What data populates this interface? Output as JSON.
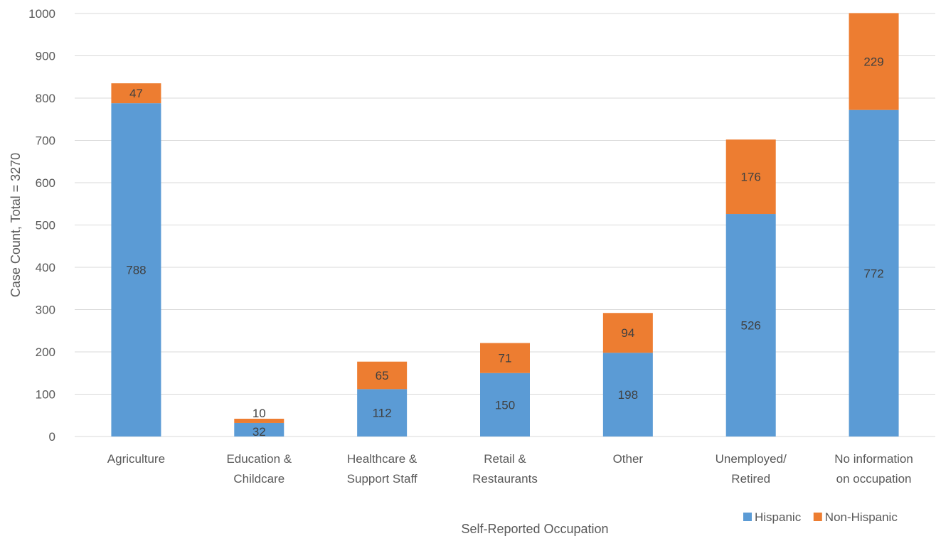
{
  "chart_data": {
    "type": "bar",
    "stacked": true,
    "categories": [
      [
        "Agriculture"
      ],
      [
        "Education &",
        "Childcare"
      ],
      [
        "Healthcare &",
        "Support Staff"
      ],
      [
        "Retail &",
        "Restaurants"
      ],
      [
        "Other"
      ],
      [
        "Unemployed/",
        "Retired"
      ],
      [
        "No information",
        "on occupation"
      ]
    ],
    "series": [
      {
        "name": "Hispanic",
        "color": "#5b9bd5",
        "values": [
          788,
          32,
          112,
          150,
          198,
          526,
          772
        ]
      },
      {
        "name": "Non-Hispanic",
        "color": "#ed7d31",
        "values": [
          47,
          10,
          65,
          71,
          94,
          176,
          229
        ]
      }
    ],
    "xlabel": "Self-Reported Occupation",
    "ylabel": "Case Count, Total = 3270",
    "ylim": [
      0,
      1000
    ],
    "yticks": [
      0,
      100,
      200,
      300,
      400,
      500,
      600,
      700,
      800,
      900,
      1000
    ],
    "grid": true,
    "legend_position": "bottom-right",
    "data_labels": true
  }
}
